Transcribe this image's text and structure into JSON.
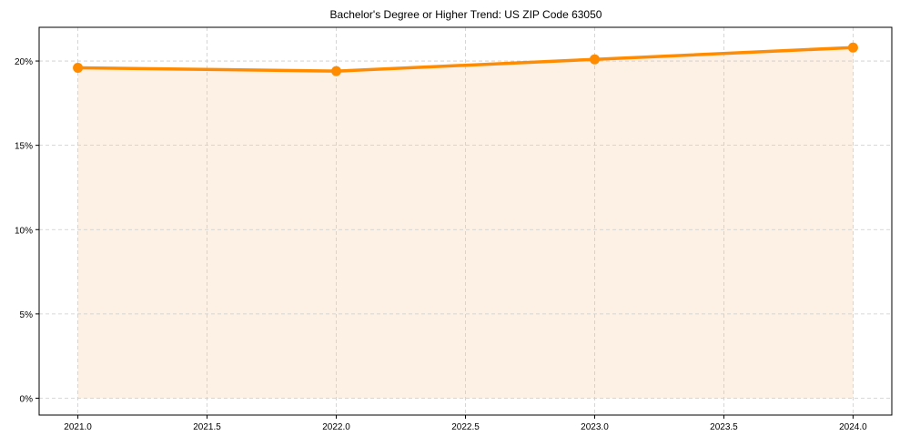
{
  "chart_data": {
    "type": "line",
    "title": "Bachelor's Degree or Higher Trend: US ZIP Code 63050",
    "xlabel": "",
    "ylabel": "",
    "x": [
      2021,
      2022,
      2023,
      2024
    ],
    "series": [
      {
        "name": "Bachelor's Degree or Higher",
        "values": [
          19.6,
          19.4,
          20.1,
          20.8
        ],
        "color": "#ff8c00",
        "fill": "#fdf0e4"
      }
    ],
    "xlim": [
      2020.85,
      2024.15
    ],
    "ylim": [
      -1.0,
      22.0
    ],
    "x_ticks": [
      2021.0,
      2021.5,
      2022.0,
      2022.5,
      2023.0,
      2023.5,
      2024.0
    ],
    "x_tick_labels": [
      "2021.0",
      "2021.5",
      "2022.0",
      "2022.5",
      "2023.0",
      "2023.5",
      "2024.0"
    ],
    "y_ticks": [
      0,
      5,
      10,
      15,
      20
    ],
    "y_tick_labels": [
      "0%",
      "5%",
      "10%",
      "15%",
      "20%"
    ],
    "grid": true,
    "legend": null
  }
}
